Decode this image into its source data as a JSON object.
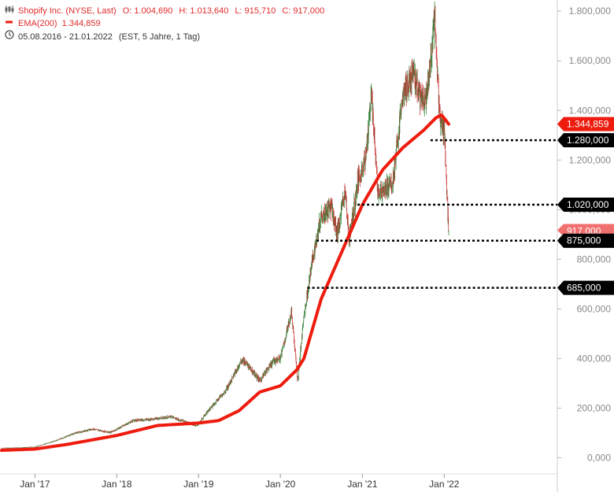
{
  "header": {
    "instrument": "Shopify Inc. (NYSE, Last)",
    "open_label": "O:",
    "open_value": "1.004,690",
    "high_label": "H:",
    "high_value": "1.013,640",
    "low_label": "L:",
    "low_value": "915,710",
    "close_label": "C:",
    "close_value": "917,000",
    "ema_label": "EMA(200)",
    "ema_value": "1.344,859",
    "range": "05.08.2016 - 21.01.2022",
    "settings": "(EST, 5 Jahre, 1 Tag)",
    "icons": [
      "candlestick-icon",
      "ema-line-icon",
      "clock-icon"
    ]
  },
  "colors": {
    "ema": "#ee1c0e",
    "candle_up": "#2e7d32",
    "candle_down": "#c62828",
    "price_badge": "#ee1c0e",
    "last_badge": "#f07070",
    "level_badge": "#000000",
    "axis_text": "#888888"
  },
  "chart_data": {
    "type": "candlestick",
    "x_range": [
      "2016-08-05",
      "2022-01-21"
    ],
    "x_ticks": [
      {
        "date": "2017-01-01",
        "label": "Jan '17"
      },
      {
        "date": "2018-01-01",
        "label": "Jan '18"
      },
      {
        "date": "2019-01-01",
        "label": "Jan '19"
      },
      {
        "date": "2020-01-01",
        "label": "Jan '20"
      },
      {
        "date": "2021-01-01",
        "label": "Jan '21"
      },
      {
        "date": "2022-01-01",
        "label": "Jan '22"
      }
    ],
    "y_ticks": [
      {
        "value": 0,
        "label": "0,000"
      },
      {
        "value": 200,
        "label": "200,000"
      },
      {
        "value": 400,
        "label": "400,000"
      },
      {
        "value": 600,
        "label": "600,000"
      },
      {
        "value": 800,
        "label": "800,000"
      },
      {
        "value": 1000,
        "label": "1.000,000"
      },
      {
        "value": 1200,
        "label": "1.200,000"
      },
      {
        "value": 1400,
        "label": "1.400,000"
      },
      {
        "value": 1600,
        "label": "1.600,000"
      },
      {
        "value": 1800,
        "label": "1.800,000"
      }
    ],
    "ylim": [
      -65,
      1845
    ],
    "price_path": [
      [
        "2016-08-05",
        38
      ],
      [
        "2016-11-01",
        40
      ],
      [
        "2017-01-01",
        43
      ],
      [
        "2017-04-01",
        68
      ],
      [
        "2017-07-01",
        100
      ],
      [
        "2017-09-15",
        115
      ],
      [
        "2017-12-01",
        102
      ],
      [
        "2018-01-01",
        115
      ],
      [
        "2018-03-15",
        150
      ],
      [
        "2018-06-01",
        155
      ],
      [
        "2018-09-01",
        165
      ],
      [
        "2018-11-15",
        140
      ],
      [
        "2018-12-24",
        128
      ],
      [
        "2019-01-01",
        140
      ],
      [
        "2019-03-01",
        205
      ],
      [
        "2019-05-01",
        270
      ],
      [
        "2019-07-15",
        395
      ],
      [
        "2019-08-20",
        360
      ],
      [
        "2019-10-01",
        310
      ],
      [
        "2019-12-01",
        390
      ],
      [
        "2020-01-01",
        400
      ],
      [
        "2020-02-20",
        590
      ],
      [
        "2020-03-18",
        310
      ],
      [
        "2020-04-15",
        570
      ],
      [
        "2020-05-20",
        780
      ],
      [
        "2020-07-01",
        980
      ],
      [
        "2020-08-15",
        1010
      ],
      [
        "2020-09-10",
        900
      ],
      [
        "2020-10-15",
        1080
      ],
      [
        "2020-11-03",
        880
      ],
      [
        "2020-12-15",
        1130
      ],
      [
        "2021-01-15",
        1200
      ],
      [
        "2021-02-10",
        1480
      ],
      [
        "2021-03-10",
        1070
      ],
      [
        "2021-05-15",
        1100
      ],
      [
        "2021-07-01",
        1460
      ],
      [
        "2021-08-15",
        1550
      ],
      [
        "2021-09-20",
        1440
      ],
      [
        "2021-10-15",
        1450
      ],
      [
        "2021-11-19",
        1760
      ],
      [
        "2021-12-10",
        1400
      ],
      [
        "2022-01-03",
        1300
      ],
      [
        "2022-01-14",
        1040
      ],
      [
        "2022-01-21",
        917
      ]
    ],
    "ema_path": [
      [
        "2016-08-05",
        30
      ],
      [
        "2017-01-01",
        35
      ],
      [
        "2017-06-01",
        55
      ],
      [
        "2018-01-01",
        90
      ],
      [
        "2018-07-01",
        130
      ],
      [
        "2019-01-01",
        140
      ],
      [
        "2019-04-01",
        150
      ],
      [
        "2019-07-01",
        190
      ],
      [
        "2019-10-01",
        265
      ],
      [
        "2020-01-01",
        290
      ],
      [
        "2020-03-15",
        355
      ],
      [
        "2020-04-15",
        400
      ],
      [
        "2020-07-01",
        640
      ],
      [
        "2020-10-01",
        830
      ],
      [
        "2021-01-01",
        1020
      ],
      [
        "2021-04-01",
        1160
      ],
      [
        "2021-07-01",
        1250
      ],
      [
        "2021-10-01",
        1320
      ],
      [
        "2021-11-25",
        1370
      ],
      [
        "2021-12-20",
        1382
      ],
      [
        "2022-01-21",
        1345
      ]
    ],
    "last_price": {
      "value": 917,
      "label": "917,000"
    },
    "ema_last": {
      "value": 1344.859,
      "label": "1.344,859"
    },
    "levels": [
      {
        "value": 1280,
        "label": "1.280,000",
        "from": "2021-11-01"
      },
      {
        "value": 1020,
        "label": "1.020,000",
        "from": "2020-12-10"
      },
      {
        "value": 875,
        "label": "875,000",
        "from": "2020-06-10"
      },
      {
        "value": 685,
        "label": "685,000",
        "from": "2020-05-01"
      }
    ]
  }
}
